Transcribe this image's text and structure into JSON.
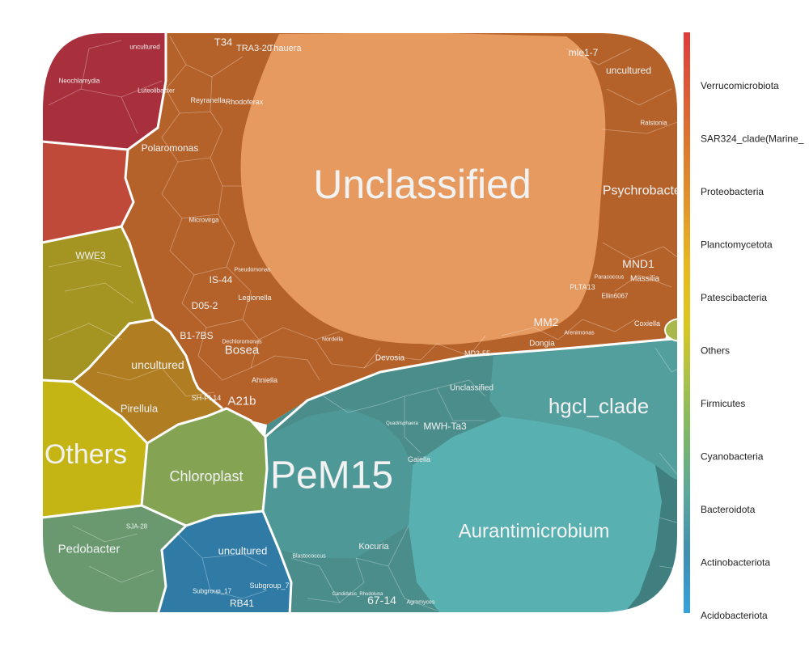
{
  "chart_data": {
    "type": "voronoi-treemap",
    "title": "",
    "legend": {
      "position": "right",
      "entries": [
        {
          "name": "Verrucomicrobiota",
          "color": "#c9583a"
        },
        {
          "name": "SAR324_clade(Marine_",
          "color": "#d2643a"
        },
        {
          "name": "Proteobacteria",
          "color": "#d87a2f"
        },
        {
          "name": "Planctomycetota",
          "color": "#e8962a"
        },
        {
          "name": "Patescibacteria",
          "color": "#e8b81e"
        },
        {
          "name": "Others",
          "color": "#d6c51c"
        },
        {
          "name": "Firmicutes",
          "color": "#a8c24a"
        },
        {
          "name": "Cyanobacteria",
          "color": "#78b070"
        },
        {
          "name": "Bacteroidota",
          "color": "#5aa79e"
        },
        {
          "name": "Actinobacteriota",
          "color": "#3f93b8"
        },
        {
          "name": "Acidobacteriota",
          "color": "#3aa0d8"
        }
      ],
      "colorbar_stops": [
        "#e03a3a",
        "#dd5a36",
        "#dd7a2e",
        "#e2962a",
        "#e8b820",
        "#dcc61e",
        "#a8c24a",
        "#7ab56a",
        "#5aa79e",
        "#3f8fb3",
        "#35a2dc"
      ]
    },
    "groups": [
      {
        "phylum": "Verrucomicrobiota",
        "color": "#a8303c"
      },
      {
        "phylum": "SAR324_clade(Marine_group_B)",
        "color": "#c04a3a"
      },
      {
        "phylum": "Proteobacteria",
        "color": "#b5622a"
      },
      {
        "phylum": "Planctomycetota",
        "color": "#b07d22"
      },
      {
        "phylum": "Patescibacteria",
        "color": "#a49523"
      },
      {
        "phylum": "Others",
        "color": "#c4b515"
      },
      {
        "phylum": "Cyanobacteria",
        "color": "#84a454"
      },
      {
        "phylum": "Bacteroidota",
        "color": "#6a9970"
      },
      {
        "phylum": "Actinobacteriota",
        "color": "#4a8d8b"
      },
      {
        "phylum": "Acidobacteriota",
        "color": "#2f7ba6"
      }
    ],
    "labels": [
      {
        "text": "Unclassified",
        "group": "Unclassified",
        "size": 50
      },
      {
        "text": "PeM15",
        "group": "Actinobacteriota",
        "size": 48
      },
      {
        "text": "Others",
        "group": "Others",
        "size": 34
      },
      {
        "text": "hgcl_clade",
        "group": "Actinobacteriota",
        "size": 26
      },
      {
        "text": "Aurantimicrobium",
        "group": "Actinobacteriota",
        "size": 24
      },
      {
        "text": "Chloroplast",
        "group": "Cyanobacteria",
        "size": 18
      },
      {
        "text": "Psychrobacter",
        "group": "Proteobacteria",
        "size": 16
      },
      {
        "text": "Pedobacter",
        "group": "Bacteroidota",
        "size": 15
      },
      {
        "text": "uncultured",
        "group": "Acidobacteriota",
        "size": 13
      },
      {
        "text": "Bosea",
        "group": "Proteobacteria",
        "size": 15
      },
      {
        "text": "A21b",
        "group": "Proteobacteria",
        "size": 15
      },
      {
        "text": "uncultured",
        "group": "Planctomycetota",
        "size": 14
      },
      {
        "text": "Pirellula",
        "group": "Planctomycetota",
        "size": 13
      },
      {
        "text": "MND1",
        "group": "Proteobacteria",
        "size": 14
      },
      {
        "text": "MM2",
        "group": "Proteobacteria",
        "size": 14
      },
      {
        "text": "67-14",
        "group": "Actinobacteriota",
        "size": 14
      },
      {
        "text": "Polaromonas",
        "group": "Proteobacteria",
        "size": 12
      },
      {
        "text": "uncultured",
        "group": "Proteobacteria",
        "size": 12
      },
      {
        "text": "mle1-7",
        "group": "Proteobacteria",
        "size": 12
      },
      {
        "text": "T34",
        "group": "Proteobacteria",
        "size": 13
      },
      {
        "text": "IS-44",
        "group": "Proteobacteria",
        "size": 12
      },
      {
        "text": "D05-2",
        "group": "Proteobacteria",
        "size": 12
      },
      {
        "text": "B1-7BS",
        "group": "Proteobacteria",
        "size": 12
      },
      {
        "text": "WWE3",
        "group": "Patescibacteria",
        "size": 12
      },
      {
        "text": "RB41",
        "group": "Acidobacteriota",
        "size": 12
      },
      {
        "text": "MWH-Ta3",
        "group": "Actinobacteriota",
        "size": 12
      },
      {
        "text": "Kocuria",
        "group": "Actinobacteriota",
        "size": 11
      },
      {
        "text": "TRA3-20",
        "group": "Proteobacteria",
        "size": 11
      },
      {
        "text": "Thauera",
        "group": "Proteobacteria",
        "size": 11
      },
      {
        "text": "Unclassified",
        "group": "Actinobacteriota",
        "size": 10
      },
      {
        "text": "Gaiella",
        "group": "Actinobacteriota",
        "size": 9
      },
      {
        "text": "Massilia",
        "group": "Proteobacteria",
        "size": 10
      },
      {
        "text": "Legionella",
        "group": "Proteobacteria",
        "size": 9
      },
      {
        "text": "Devosia",
        "group": "Proteobacteria",
        "size": 10
      },
      {
        "text": "Dongia",
        "group": "Proteobacteria",
        "size": 10
      },
      {
        "text": "Ahniella",
        "group": "Proteobacteria",
        "size": 9
      },
      {
        "text": "Coxiella",
        "group": "Proteobacteria",
        "size": 9
      },
      {
        "text": "PLTA13",
        "group": "Proteobacteria",
        "size": 9
      },
      {
        "text": "Ellin6067",
        "group": "Proteobacteria",
        "size": 8
      },
      {
        "text": "MD3-55",
        "group": "Proteobacteria",
        "size": 9
      },
      {
        "text": "SH-PL14",
        "group": "Planctomycetota",
        "size": 9
      },
      {
        "text": "Rhodoferax",
        "group": "Proteobacteria",
        "size": 9
      },
      {
        "text": "Reyranella",
        "group": "Proteobacteria",
        "size": 9
      },
      {
        "text": "Microvirga",
        "group": "Proteobacteria",
        "size": 8
      },
      {
        "text": "Luteolibacter",
        "group": "Verrucomicrobiota",
        "size": 8
      },
      {
        "text": "Neochlamydia",
        "group": "Verrucomicrobiota",
        "size": 8
      },
      {
        "text": "uncultured",
        "group": "Verrucomicrobiota",
        "size": 8
      },
      {
        "text": "Subgroup_7",
        "group": "Acidobacteriota",
        "size": 9
      },
      {
        "text": "Subgroup_17",
        "group": "Acidobacteriota",
        "size": 8
      },
      {
        "text": "SJA-28",
        "group": "Bacteroidota",
        "size": 8
      },
      {
        "text": "Ralstonia",
        "group": "Proteobacteria",
        "size": 8
      },
      {
        "text": "Pseudomonas",
        "group": "Proteobacteria",
        "size": 7
      },
      {
        "text": "Dechloromonas",
        "group": "Proteobacteria",
        "size": 7
      },
      {
        "text": "Nordella",
        "group": "Proteobacteria",
        "size": 7
      },
      {
        "text": "Arenimonas",
        "group": "Proteobacteria",
        "size": 7
      },
      {
        "text": "Paracoccus",
        "group": "Proteobacteria",
        "size": 7
      },
      {
        "text": "Agromyces",
        "group": "Actinobacteriota",
        "size": 7
      },
      {
        "text": "Blastococcus",
        "group": "Actinobacteriota",
        "size": 7
      },
      {
        "text": "Quadrisphaera",
        "group": "Actinobacteriota",
        "size": 6
      },
      {
        "text": "Candidatus_Rhodoluna",
        "group": "Actinobacteriota",
        "size": 6
      }
    ]
  }
}
